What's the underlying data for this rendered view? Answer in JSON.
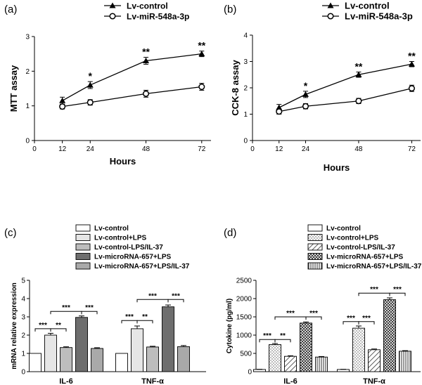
{
  "chart_data": [
    {
      "panel": "(a)",
      "type": "line",
      "xlabel": "Hours",
      "ylabel": "MTT assay",
      "x": [
        12,
        24,
        48,
        72
      ],
      "xticks": [
        "0",
        "12",
        "24",
        "48",
        "72"
      ],
      "yticks": [
        "0",
        "1",
        "2",
        "3"
      ],
      "xlim": [
        0,
        76
      ],
      "ylim": [
        0,
        3
      ],
      "legend_position": "top",
      "series": [
        {
          "name": "Lv-control",
          "marker": "triangle",
          "values": [
            1.15,
            1.6,
            2.3,
            2.5
          ],
          "errors": [
            0.1,
            0.1,
            0.1,
            0.08
          ]
        },
        {
          "name": "Lv-miR-548a-3p",
          "marker": "circle",
          "values": [
            0.98,
            1.1,
            1.35,
            1.55
          ],
          "errors": [
            0.07,
            0.08,
            0.1,
            0.1
          ]
        }
      ],
      "annotations": [
        {
          "x": 24,
          "text": "*"
        },
        {
          "x": 48,
          "text": "**"
        },
        {
          "x": 72,
          "text": "**"
        }
      ]
    },
    {
      "panel": "(b)",
      "type": "line",
      "xlabel": "Hours",
      "ylabel": "CCK-8 assay",
      "x": [
        12,
        24,
        48,
        72
      ],
      "xticks": [
        "0",
        "12",
        "24",
        "48",
        "72"
      ],
      "yticks": [
        "0",
        "1",
        "2",
        "3",
        "4"
      ],
      "xlim": [
        0,
        76
      ],
      "ylim": [
        0,
        4
      ],
      "legend_position": "top",
      "series": [
        {
          "name": "Lv-control",
          "marker": "triangle",
          "values": [
            1.25,
            1.75,
            2.5,
            2.9
          ],
          "errors": [
            0.12,
            0.12,
            0.1,
            0.1
          ]
        },
        {
          "name": "Lv-miR-548a-3p",
          "marker": "circle",
          "values": [
            1.1,
            1.3,
            1.5,
            1.98
          ],
          "errors": [
            0.1,
            0.1,
            0.1,
            0.12
          ]
        }
      ],
      "annotations": [
        {
          "x": 24,
          "text": "*"
        },
        {
          "x": 48,
          "text": "**"
        },
        {
          "x": 72,
          "text": "**"
        }
      ]
    },
    {
      "panel": "(c)",
      "type": "bar",
      "ylabel": "mRNA relative expression",
      "categories": [
        "IL-6",
        "TNF-α"
      ],
      "yticks": [
        "0",
        "1",
        "2",
        "3",
        "4",
        "5"
      ],
      "ylim": [
        0,
        5
      ],
      "legend_position": "top",
      "series": [
        {
          "name": "Lv-control",
          "pattern": "white",
          "values": [
            1.0,
            1.0
          ],
          "errors": [
            0,
            0
          ]
        },
        {
          "name": "Lv-control+LPS",
          "pattern": "light",
          "values": [
            2.0,
            2.35
          ],
          "errors": [
            0.1,
            0.15
          ]
        },
        {
          "name": "Lv-control-LPS/IL-37",
          "pattern": "gray",
          "values": [
            1.32,
            1.35
          ],
          "errors": [
            0.04,
            0.04
          ]
        },
        {
          "name": "Lv-microRNA-657+LPS",
          "pattern": "dark",
          "values": [
            2.97,
            3.55
          ],
          "errors": [
            0.08,
            0.1
          ]
        },
        {
          "name": "Lv-microRNA-657+LPS/IL-37",
          "pattern": "medium",
          "values": [
            1.27,
            1.37
          ],
          "errors": [
            0.04,
            0.06
          ]
        }
      ],
      "brackets": [
        {
          "category": 0,
          "from": 0,
          "to": 1,
          "text": "***",
          "y": 2.35
        },
        {
          "category": 0,
          "from": 1,
          "to": 2,
          "text": "**",
          "y": 2.35
        },
        {
          "category": 0,
          "from": 1,
          "to": 3,
          "text": "***",
          "y": 3.3
        },
        {
          "category": 0,
          "from": 3,
          "to": 4,
          "text": "***",
          "y": 3.3
        },
        {
          "category": 1,
          "from": 0,
          "to": 1,
          "text": "***",
          "y": 2.8
        },
        {
          "category": 1,
          "from": 1,
          "to": 2,
          "text": "**",
          "y": 2.8
        },
        {
          "category": 1,
          "from": 1,
          "to": 3,
          "text": "***",
          "y": 3.95
        },
        {
          "category": 1,
          "from": 3,
          "to": 4,
          "text": "***",
          "y": 3.95
        }
      ]
    },
    {
      "panel": "(d)",
      "type": "bar",
      "ylabel": "Cytokine (pg/ml)",
      "categories": [
        "IL-6",
        "TNF-α"
      ],
      "yticks": [
        "0",
        "500",
        "1000",
        "1500",
        "2000",
        "2500"
      ],
      "ylim": [
        0,
        2500
      ],
      "legend_position": "top",
      "series": [
        {
          "name": "Lv-control",
          "pattern": "white",
          "values": [
            60,
            60
          ],
          "errors": [
            5,
            5
          ]
        },
        {
          "name": "Lv-control+LPS",
          "pattern": "dots",
          "values": [
            740,
            1190
          ],
          "errors": [
            30,
            60
          ]
        },
        {
          "name": "Lv-control-LPS/IL-37",
          "pattern": "hatch",
          "values": [
            420,
            600
          ],
          "errors": [
            15,
            20
          ]
        },
        {
          "name": "Lv-microRNA-657+LPS",
          "pattern": "crosshatch",
          "values": [
            1330,
            1970
          ],
          "errors": [
            30,
            50
          ]
        },
        {
          "name": "Lv-microRNA-657+LPS/IL-37",
          "pattern": "vlines",
          "values": [
            400,
            560
          ],
          "errors": [
            15,
            15
          ]
        }
      ],
      "brackets": [
        {
          "category": 0,
          "from": 0,
          "to": 1,
          "text": "***",
          "y": 880
        },
        {
          "category": 0,
          "from": 1,
          "to": 2,
          "text": "**",
          "y": 880
        },
        {
          "category": 0,
          "from": 1,
          "to": 3,
          "text": "***",
          "y": 1500
        },
        {
          "category": 0,
          "from": 3,
          "to": 4,
          "text": "***",
          "y": 1500
        },
        {
          "category": 1,
          "from": 0,
          "to": 1,
          "text": "***",
          "y": 1370
        },
        {
          "category": 1,
          "from": 1,
          "to": 2,
          "text": "***",
          "y": 1370
        },
        {
          "category": 1,
          "from": 1,
          "to": 3,
          "text": "***",
          "y": 2150
        },
        {
          "category": 1,
          "from": 3,
          "to": 4,
          "text": "***",
          "y": 2150
        }
      ]
    }
  ]
}
